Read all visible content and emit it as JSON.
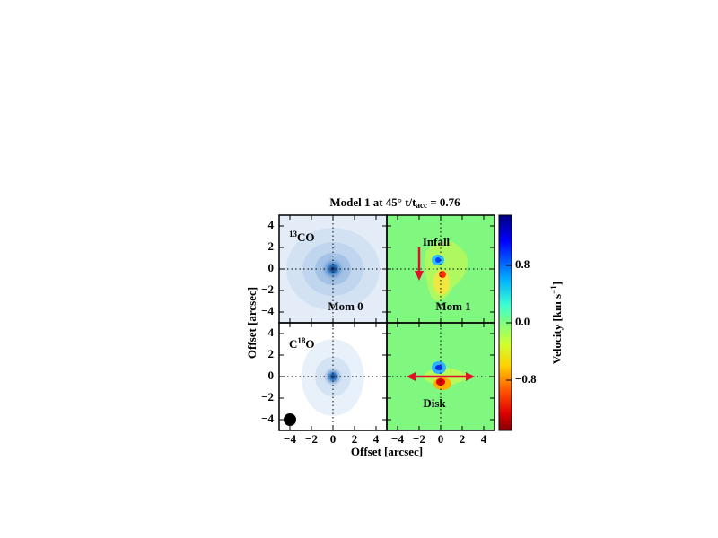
{
  "figure": {
    "title": [
      "Model 1 at 45° t/t",
      "acc",
      " = 0.76"
    ],
    "panels": [
      {
        "label": [
          "13",
          "CO"
        ],
        "moment": "Mom 0"
      },
      {
        "annotation": "Infall",
        "moment": "Mom 1"
      },
      {
        "label": [
          "C",
          "18",
          "O"
        ]
      },
      {
        "annotation": "Disk"
      }
    ],
    "xlabel": "Offset [arcsec]",
    "ylabel": "Offset [arcsec]",
    "xlim": [
      -5,
      5
    ],
    "ylim": [
      -5,
      5
    ],
    "xticks": [
      {
        "value": -4,
        "label": "−4"
      },
      {
        "value": -2,
        "label": "−2"
      },
      0,
      2,
      4
    ],
    "yticks": [
      {
        "value": -4,
        "label": "−4"
      },
      {
        "value": -2,
        "label": "−2"
      },
      0,
      2,
      4
    ],
    "colorbar": {
      "label": [
        "Velocity [km s",
        "−1",
        "]"
      ],
      "lim": [
        -1.5,
        1.5
      ],
      "ticks": [
        0.8,
        {
          "value": 0,
          "label": "0.0"
        },
        {
          "value": -0.8,
          "label": "−0.8"
        }
      ]
    }
  }
}
